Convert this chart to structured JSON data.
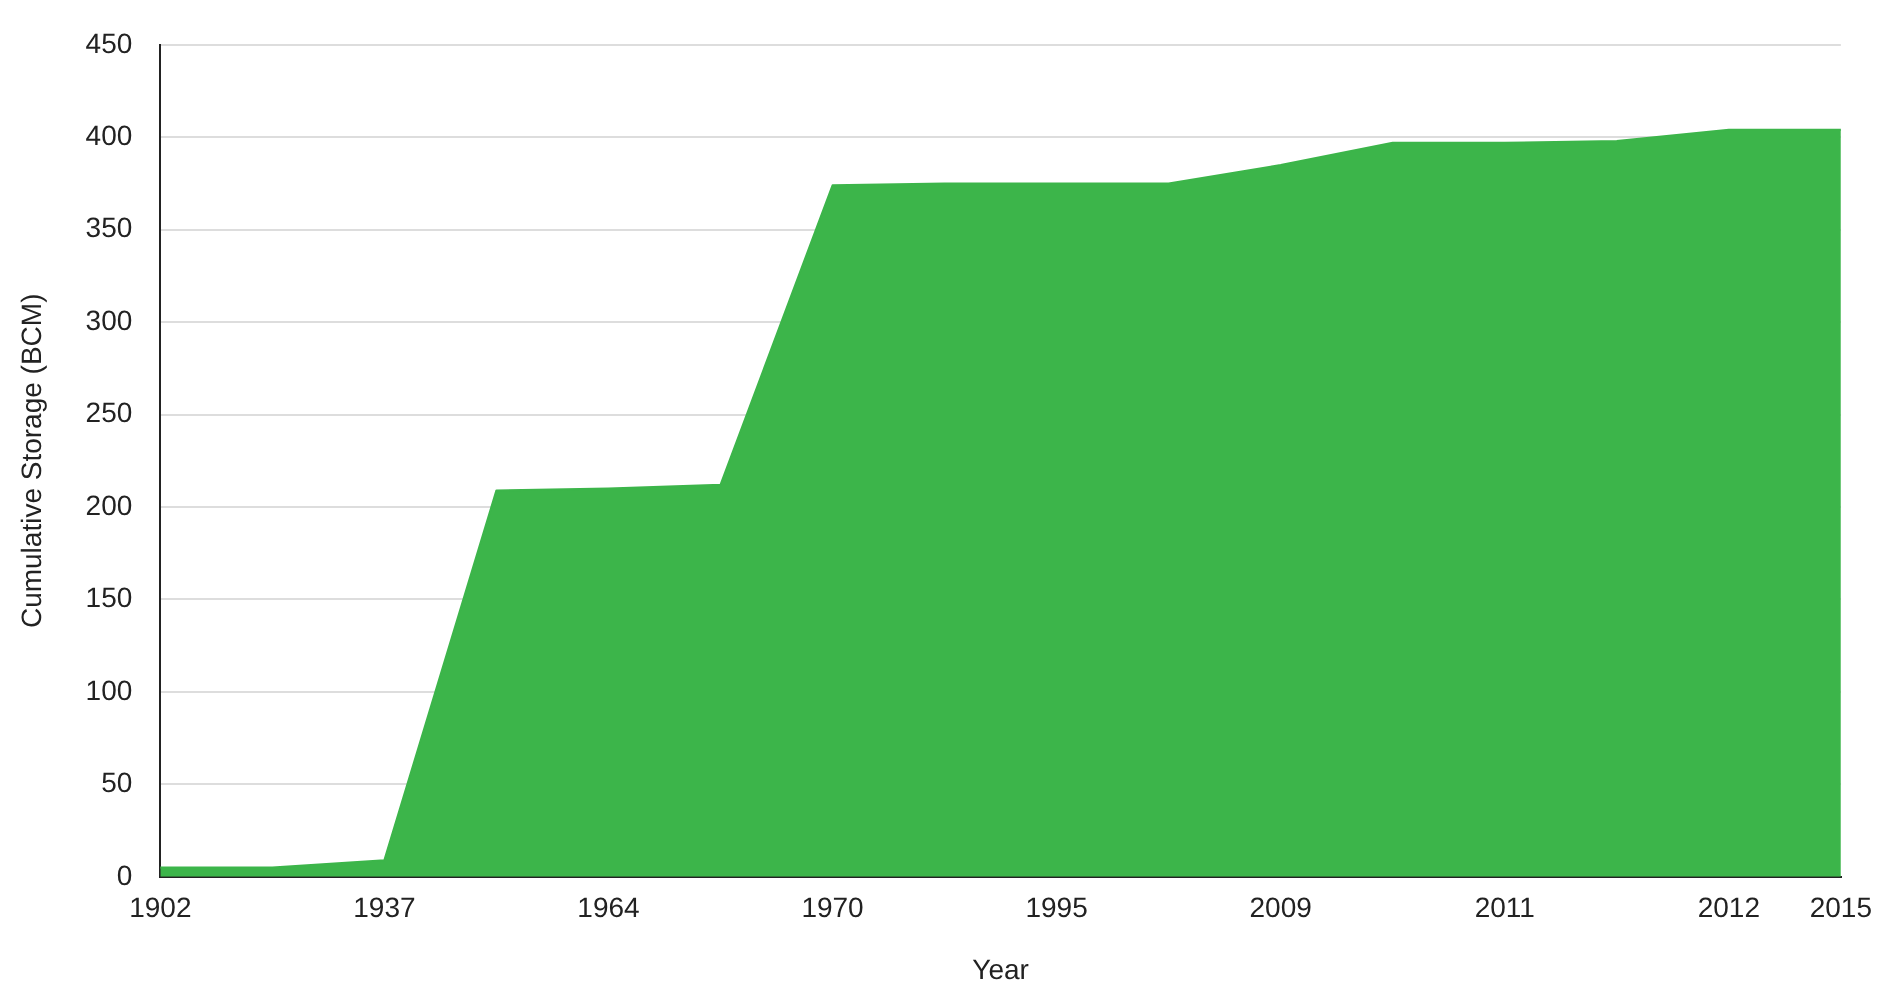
{
  "chart_data": {
    "type": "area",
    "xlabel": "Year",
    "ylabel": "Cumulative Storage (BCM)",
    "categories": [
      "1902",
      null,
      "1937",
      null,
      "1964",
      null,
      "1970",
      null,
      "1995",
      null,
      "2009",
      null,
      "2011",
      null,
      "2012",
      "2015"
    ],
    "series": [
      {
        "color": "#3cb54a",
        "values": [
          5,
          5,
          9,
          209,
          210,
          212,
          374,
          375,
          375,
          375,
          385,
          397,
          397,
          398,
          404,
          404
        ]
      }
    ],
    "ylim": [
      0,
      450
    ],
    "yticks": [
      0,
      50,
      100,
      150,
      200,
      250,
      300,
      350,
      400,
      450
    ],
    "grid": "y",
    "legend": false
  }
}
